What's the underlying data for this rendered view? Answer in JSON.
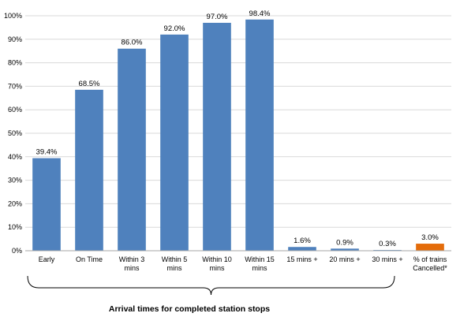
{
  "chart_data": {
    "type": "bar",
    "categories": [
      [
        "Early"
      ],
      [
        "On Time"
      ],
      [
        "Within 3",
        "mins"
      ],
      [
        "Within 5",
        "mins"
      ],
      [
        "Within 10",
        "mins"
      ],
      [
        "Within 15",
        "mins"
      ],
      [
        "15 mins +"
      ],
      [
        "20 mins +"
      ],
      [
        "30 mins +"
      ],
      [
        "% of trains",
        "Cancelled*"
      ]
    ],
    "values": [
      39.4,
      68.5,
      86.0,
      92.0,
      97.0,
      98.4,
      1.6,
      0.9,
      0.3,
      3.0
    ],
    "value_labels": [
      "39.4%",
      "68.5%",
      "86.0%",
      "92.0%",
      "97.0%",
      "98.4%",
      "1.6%",
      "0.9%",
      "0.3%",
      "3.0%"
    ],
    "bar_colors": [
      "#4f81bd",
      "#4f81bd",
      "#4f81bd",
      "#4f81bd",
      "#4f81bd",
      "#4f81bd",
      "#4f81bd",
      "#4f81bd",
      "#4f81bd",
      "#e46c0a"
    ],
    "y_ticks": [
      "0%",
      "10%",
      "20%",
      "30%",
      "40%",
      "50%",
      "60%",
      "70%",
      "80%",
      "90%",
      "100%"
    ],
    "ylim": [
      0,
      100
    ],
    "xlabel": "Arrival times for completed station stops",
    "title": "",
    "ylabel": "",
    "grid": true,
    "legend": "none"
  }
}
